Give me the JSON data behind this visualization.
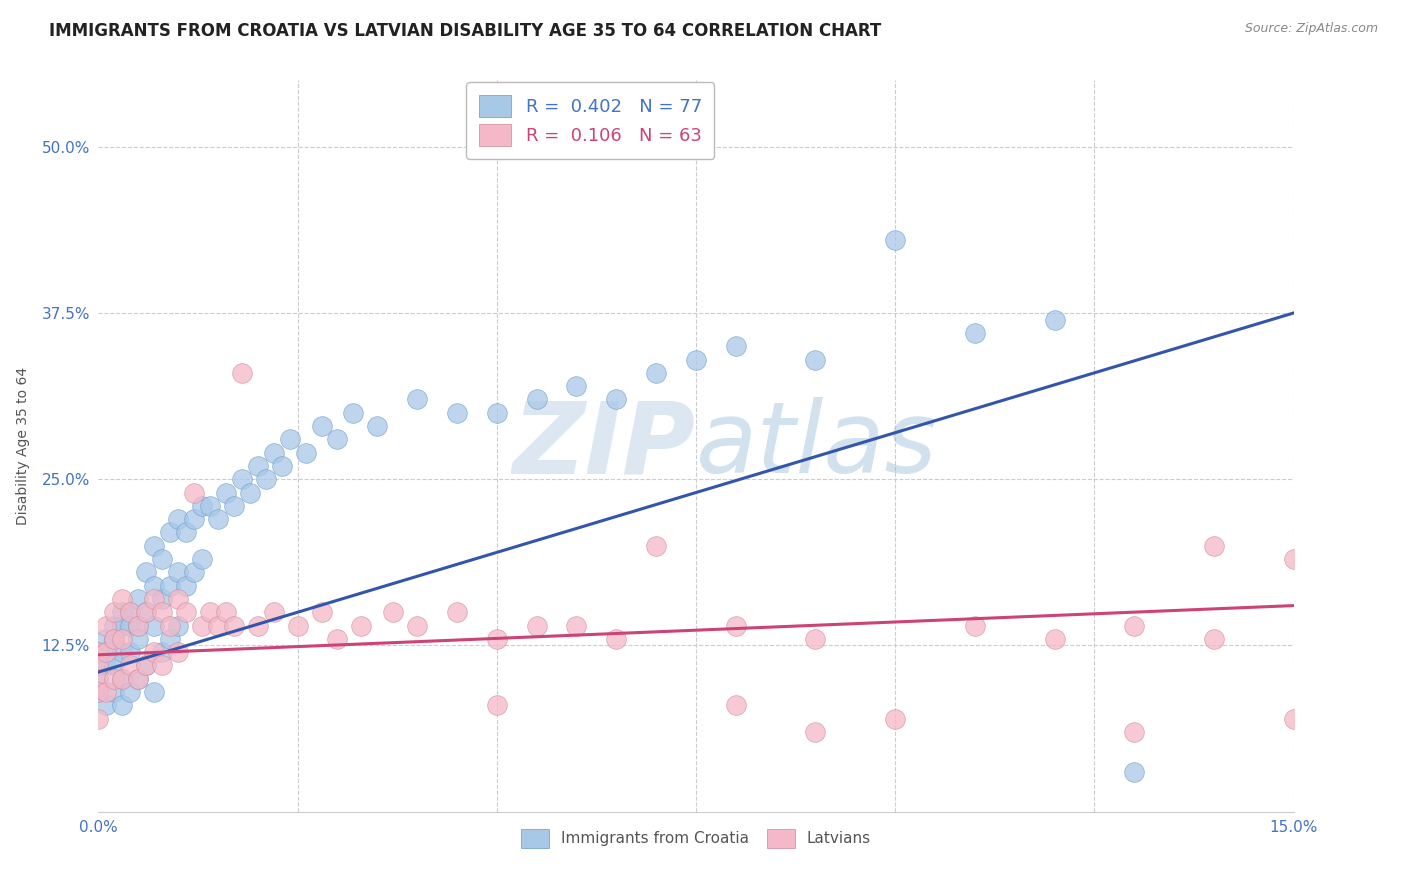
{
  "title": "IMMIGRANTS FROM CROATIA VS LATVIAN DISABILITY AGE 35 TO 64 CORRELATION CHART",
  "source": "Source: ZipAtlas.com",
  "ylabel": "Disability Age 35 to 64",
  "xlim": [
    0.0,
    0.15
  ],
  "ylim": [
    0.0,
    0.55
  ],
  "xticks": [
    0.0,
    0.025,
    0.05,
    0.075,
    0.1,
    0.125,
    0.15
  ],
  "xtick_labels": [
    "0.0%",
    "",
    "",
    "",
    "",
    "",
    "15.0%"
  ],
  "yticks": [
    0.0,
    0.125,
    0.25,
    0.375,
    0.5
  ],
  "ytick_labels": [
    "",
    "12.5%",
    "25.0%",
    "37.5%",
    "50.0%"
  ],
  "series1_label": "Immigrants from Croatia",
  "series1_R": 0.402,
  "series1_N": 77,
  "series1_color": "#a8c8e8",
  "series1_edge_color": "#6699cc",
  "series1_line_color": "#3355aa",
  "series2_label": "Latvians",
  "series2_R": 0.106,
  "series2_N": 63,
  "series2_color": "#f4b8c8",
  "series2_edge_color": "#cc8899",
  "series2_line_color": "#cc4477",
  "background_color": "#ffffff",
  "grid_color": "#cccccc",
  "watermark_text": "ZIPatlas",
  "watermark_color": "#dde8f0",
  "title_fontsize": 12,
  "axis_label_fontsize": 10,
  "tick_fontsize": 11,
  "legend_fontsize": 13,
  "line1_x0": 0.0,
  "line1_y0": 0.105,
  "line1_x1": 0.15,
  "line1_y1": 0.375,
  "line2_x0": 0.0,
  "line2_y0": 0.118,
  "line2_x1": 0.15,
  "line2_y1": 0.155,
  "series1_x": [
    0.0,
    0.0,
    0.0,
    0.0,
    0.001,
    0.001,
    0.001,
    0.001,
    0.002,
    0.002,
    0.002,
    0.002,
    0.003,
    0.003,
    0.003,
    0.003,
    0.003,
    0.004,
    0.004,
    0.004,
    0.004,
    0.005,
    0.005,
    0.005,
    0.005,
    0.006,
    0.006,
    0.006,
    0.007,
    0.007,
    0.007,
    0.007,
    0.008,
    0.008,
    0.008,
    0.009,
    0.009,
    0.009,
    0.01,
    0.01,
    0.01,
    0.011,
    0.011,
    0.012,
    0.012,
    0.013,
    0.013,
    0.014,
    0.015,
    0.016,
    0.017,
    0.018,
    0.019,
    0.02,
    0.021,
    0.022,
    0.023,
    0.024,
    0.026,
    0.028,
    0.03,
    0.032,
    0.035,
    0.04,
    0.045,
    0.05,
    0.055,
    0.06,
    0.065,
    0.07,
    0.075,
    0.08,
    0.09,
    0.1,
    0.11,
    0.12,
    0.13
  ],
  "series1_y": [
    0.12,
    0.11,
    0.1,
    0.09,
    0.13,
    0.12,
    0.11,
    0.08,
    0.14,
    0.13,
    0.11,
    0.09,
    0.15,
    0.14,
    0.12,
    0.1,
    0.08,
    0.15,
    0.14,
    0.12,
    0.09,
    0.16,
    0.14,
    0.13,
    0.1,
    0.18,
    0.15,
    0.11,
    0.2,
    0.17,
    0.14,
    0.09,
    0.19,
    0.16,
    0.12,
    0.21,
    0.17,
    0.13,
    0.22,
    0.18,
    0.14,
    0.21,
    0.17,
    0.22,
    0.18,
    0.23,
    0.19,
    0.23,
    0.22,
    0.24,
    0.23,
    0.25,
    0.24,
    0.26,
    0.25,
    0.27,
    0.26,
    0.28,
    0.27,
    0.29,
    0.28,
    0.3,
    0.29,
    0.31,
    0.3,
    0.3,
    0.31,
    0.32,
    0.31,
    0.33,
    0.34,
    0.35,
    0.34,
    0.43,
    0.36,
    0.37,
    0.03
  ],
  "series2_x": [
    0.0,
    0.0,
    0.0,
    0.0,
    0.0,
    0.001,
    0.001,
    0.001,
    0.002,
    0.002,
    0.002,
    0.003,
    0.003,
    0.003,
    0.004,
    0.004,
    0.005,
    0.005,
    0.006,
    0.006,
    0.007,
    0.007,
    0.008,
    0.008,
    0.009,
    0.01,
    0.01,
    0.011,
    0.012,
    0.013,
    0.014,
    0.015,
    0.016,
    0.017,
    0.018,
    0.02,
    0.022,
    0.025,
    0.028,
    0.03,
    0.033,
    0.037,
    0.04,
    0.045,
    0.05,
    0.055,
    0.06,
    0.065,
    0.07,
    0.08,
    0.09,
    0.1,
    0.11,
    0.12,
    0.13,
    0.14,
    0.15,
    0.15,
    0.05,
    0.08,
    0.09,
    0.13,
    0.14
  ],
  "series2_y": [
    0.12,
    0.11,
    0.1,
    0.09,
    0.07,
    0.14,
    0.12,
    0.09,
    0.15,
    0.13,
    0.1,
    0.16,
    0.13,
    0.1,
    0.15,
    0.11,
    0.14,
    0.1,
    0.15,
    0.11,
    0.16,
    0.12,
    0.15,
    0.11,
    0.14,
    0.16,
    0.12,
    0.15,
    0.24,
    0.14,
    0.15,
    0.14,
    0.15,
    0.14,
    0.33,
    0.14,
    0.15,
    0.14,
    0.15,
    0.13,
    0.14,
    0.15,
    0.14,
    0.15,
    0.13,
    0.14,
    0.14,
    0.13,
    0.2,
    0.14,
    0.13,
    0.07,
    0.14,
    0.13,
    0.14,
    0.13,
    0.19,
    0.07,
    0.08,
    0.08,
    0.06,
    0.06,
    0.2
  ]
}
